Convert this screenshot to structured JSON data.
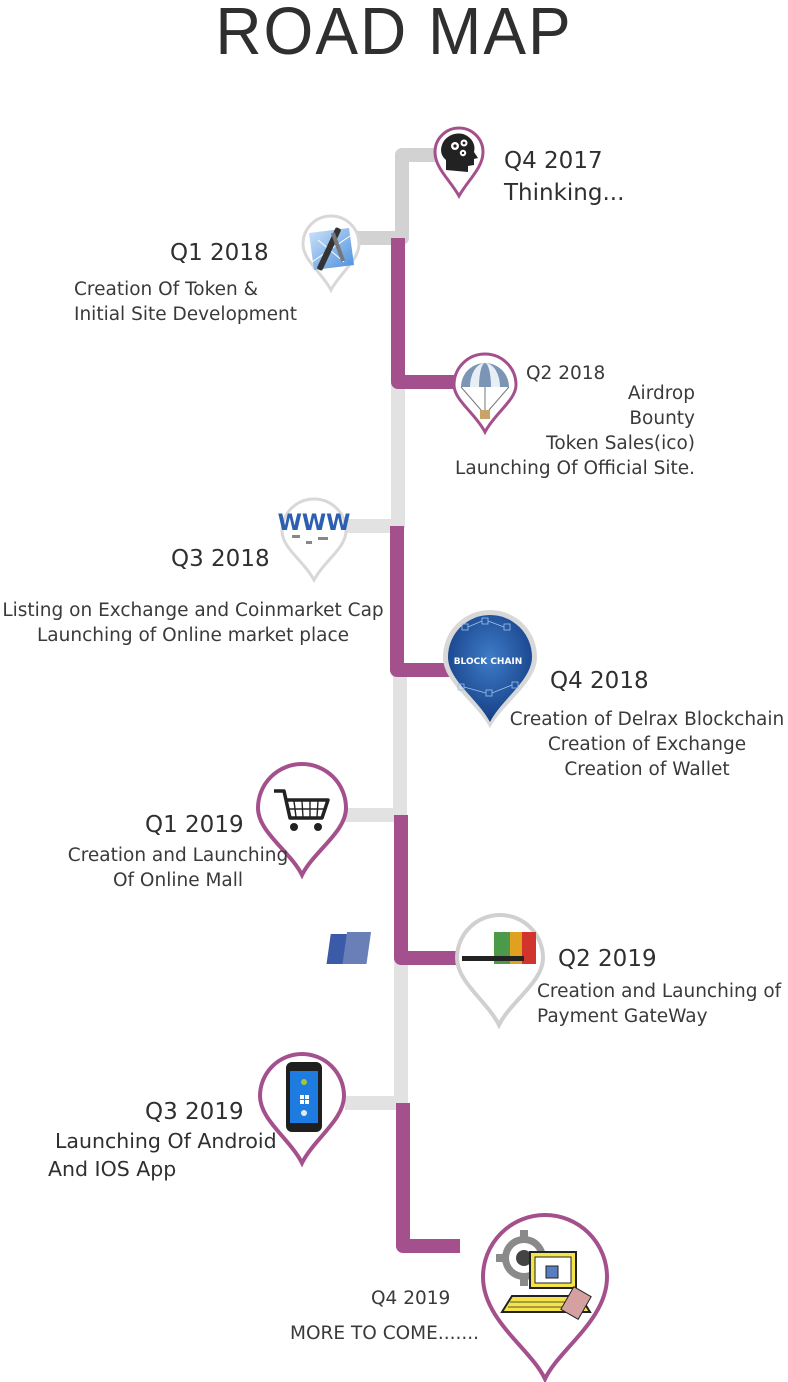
{
  "title": "ROAD MAP",
  "colors": {
    "purple": "#a3508c",
    "grey": "#d9d9d9",
    "text": "#333333"
  },
  "milestones": [
    {
      "id": "q4-2017",
      "quarter": "Q4 2017",
      "lines": [
        "Thinking..."
      ],
      "icon": "thinking-head-gears-icon"
    },
    {
      "id": "q1-2018",
      "quarter": "Q1 2018",
      "lines": [
        "Creation Of Token &",
        "Initial Site Development"
      ],
      "icon": "tools-blueprint-icon"
    },
    {
      "id": "q2-2018",
      "quarter": "Q2 2018",
      "lines": [
        "Airdrop",
        "Bounty",
        "Token Sales(ico)",
        "Launching Of Official Site."
      ],
      "icon": "parachute-icon"
    },
    {
      "id": "q3-2018",
      "quarter": "Q3 2018",
      "lines": [
        "Listing on Exchange and Coinmarket Cap",
        "Launching of Online market place"
      ],
      "icon": "www-globe-icon"
    },
    {
      "id": "q4-2018",
      "quarter": "Q4 2018",
      "lines": [
        "Creation of Delrax Blockchain",
        "Creation of Exchange",
        "Creation of Wallet"
      ],
      "icon": "blockchain-icon",
      "icon_label": "BLOCK CHAIN"
    },
    {
      "id": "q1-2019",
      "quarter": "Q1 2019",
      "lines": [
        "Creation and Launching",
        "Of Online Mall"
      ],
      "icon": "shopping-cart-icon"
    },
    {
      "id": "q2-2019",
      "quarter": "Q2 2019",
      "lines": [
        "Creation and Launching of",
        "Payment GateWay"
      ],
      "icon": "payment-cards-icon"
    },
    {
      "id": "q3-2019",
      "quarter": "Q3 2019",
      "lines": [
        "Launching Of Android",
        "And IOS App"
      ],
      "icon": "smartphone-icon"
    },
    {
      "id": "q4-2019",
      "quarter": "Q4 2019",
      "lines": [
        "MORE TO COME......."
      ],
      "icon": "computer-gears-icon"
    }
  ]
}
